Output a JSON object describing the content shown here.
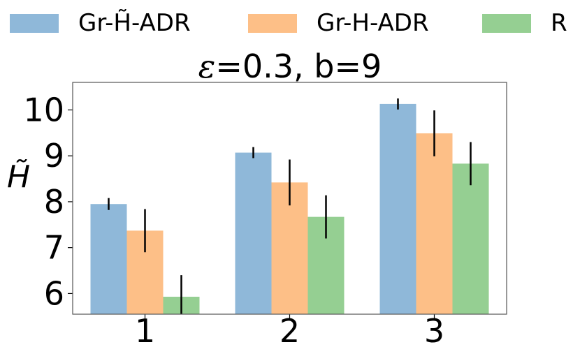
{
  "chart_data": {
    "type": "bar",
    "title_prefix": "ε",
    "title_rest": "=0.3, b=9",
    "ylabel": "H̃",
    "categories": [
      "1",
      "2",
      "3"
    ],
    "ylim": [
      5.55,
      10.6
    ],
    "yticks": [
      "6",
      "7",
      "8",
      "9",
      "10"
    ],
    "series": [
      {
        "name": "Gr-H̃-ADR",
        "color": "#8fb8d9",
        "values": [
          7.95,
          9.07,
          10.13
        ],
        "errors": [
          0.13,
          0.12,
          0.12
        ]
      },
      {
        "name": "Gr-H-ADR",
        "color": "#fdbf87",
        "values": [
          7.37,
          8.42,
          9.49
        ],
        "errors": [
          0.47,
          0.5,
          0.5
        ]
      },
      {
        "name": "R",
        "color": "#95cf92",
        "values": [
          5.93,
          7.67,
          8.83
        ],
        "errors": [
          0.47,
          0.47,
          0.47
        ]
      }
    ],
    "legend": "top",
    "grid": false
  }
}
